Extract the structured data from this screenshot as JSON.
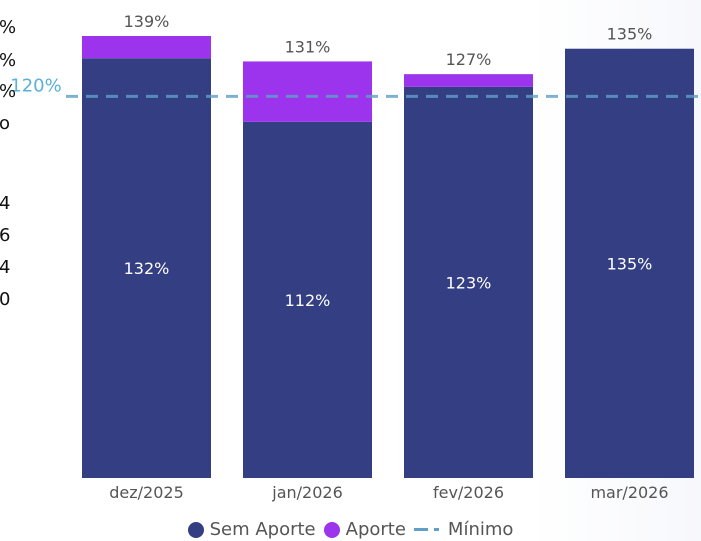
{
  "chart_data": {
    "type": "bar",
    "stacked": true,
    "categories": [
      "dez/2025",
      "jan/2026",
      "fev/2026",
      "mar/2026"
    ],
    "series": [
      {
        "name": "Sem Aporte",
        "values": [
          132,
          112,
          123,
          135
        ],
        "labels": [
          "132%",
          "112%",
          "123%",
          "135%"
        ]
      },
      {
        "name": "Aporte",
        "values": [
          7,
          19,
          4,
          0
        ]
      }
    ],
    "totals": [
      139,
      131,
      127,
      135
    ],
    "total_labels": [
      "139%",
      "131%",
      "127%",
      "135%"
    ],
    "reference_line": {
      "name": "Mínimo",
      "value": 120,
      "label": "120%"
    },
    "ylim": [
      0,
      139
    ],
    "legend_position": "bottom-center",
    "colors": {
      "Sem Aporte": "#343e82",
      "Aporte": "#9b34ec",
      "Mínimo": "#5f9fc8",
      "reference_label": "#5bb0d8",
      "axis_text": "#555555",
      "data_label_inside": "#ffffff",
      "data_label_outside": "#555555"
    }
  },
  "cropped_left_labels": [
    "%",
    "%",
    "%",
    "o",
    "4",
    "6",
    "4",
    "0"
  ]
}
